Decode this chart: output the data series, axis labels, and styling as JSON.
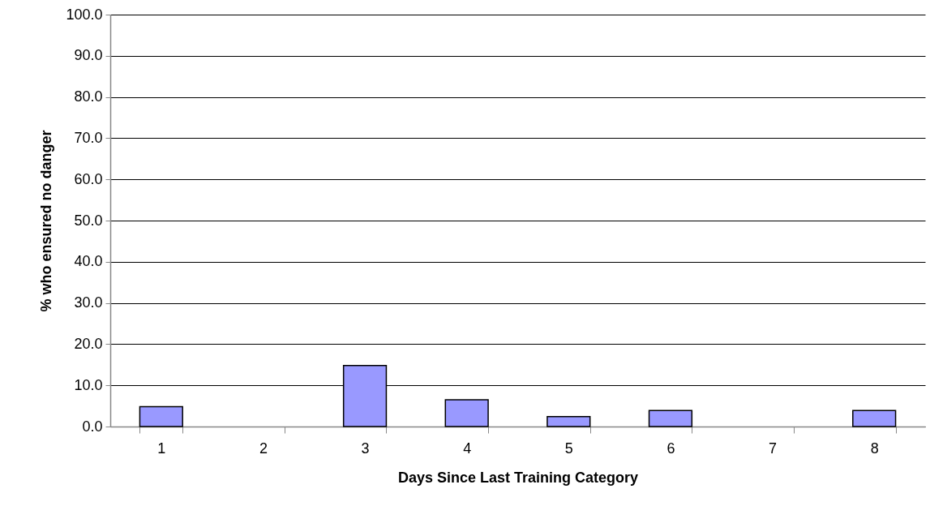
{
  "chart_data": {
    "type": "bar",
    "xlabel": "Days Since Last Training Category",
    "ylabel": "% who ensured no danger",
    "categories": [
      "1",
      "2",
      "3",
      "4",
      "5",
      "6",
      "7",
      "8"
    ],
    "values": [
      4.8,
      0,
      14.8,
      6.5,
      2.4,
      3.9,
      0,
      3.9
    ],
    "color": "#9999ff",
    "ylim": [
      0,
      100
    ],
    "yticks": [
      {
        "value": 0,
        "label": "0.0"
      },
      {
        "value": 10,
        "label": "10.0"
      },
      {
        "value": 20,
        "label": "20.0"
      },
      {
        "value": 30,
        "label": "30.0"
      },
      {
        "value": 40,
        "label": "40.0"
      },
      {
        "value": 50,
        "label": "50.0"
      },
      {
        "value": 60,
        "label": "60.0"
      },
      {
        "value": 70,
        "label": "70.0"
      },
      {
        "value": 80,
        "label": "80.0"
      },
      {
        "value": 90,
        "label": "90.0"
      },
      {
        "value": 100,
        "label": "100.0"
      }
    ],
    "grid": "y"
  }
}
